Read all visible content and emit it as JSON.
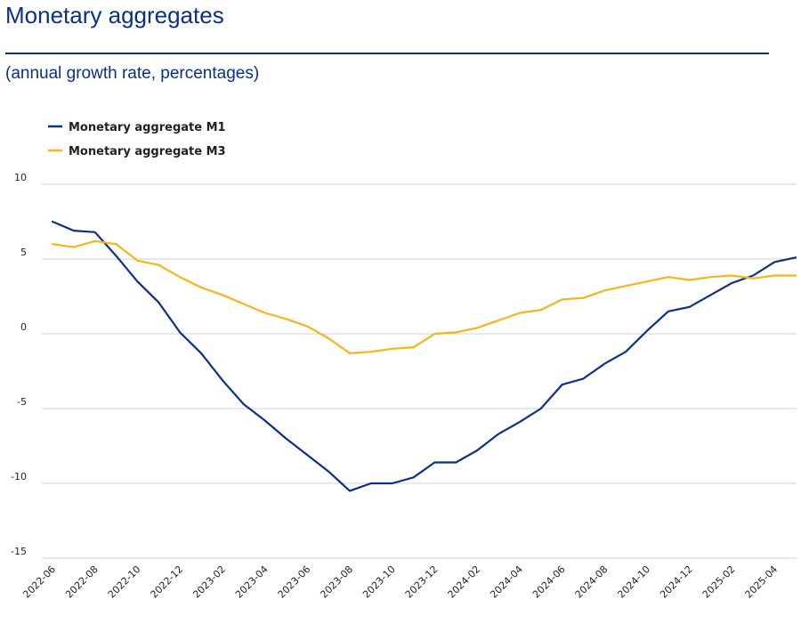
{
  "header": {
    "title": "Monetary aggregates",
    "subtitle": "(annual growth rate, percentages)"
  },
  "colors": {
    "m1": "#0b2f8a",
    "m3": "#f5b51b",
    "grid": "#d0d0d0",
    "title": "#0b2f8a"
  },
  "chart_data": {
    "type": "line",
    "title": "Monetary aggregates",
    "subtitle": "(annual growth rate, percentages)",
    "xlabel": "",
    "ylabel": "",
    "ylim": [
      -15,
      10
    ],
    "yticks": [
      10,
      5,
      0,
      -5,
      -10,
      -15
    ],
    "legend": "top-left",
    "grid": true,
    "x": [
      "2022-06",
      "2022-07",
      "2022-08",
      "2022-09",
      "2022-10",
      "2022-11",
      "2022-12",
      "2023-01",
      "2023-02",
      "2023-03",
      "2023-04",
      "2023-05",
      "2023-06",
      "2023-07",
      "2023-08",
      "2023-09",
      "2023-10",
      "2023-11",
      "2023-12",
      "2024-01",
      "2024-02",
      "2024-03",
      "2024-04",
      "2024-05",
      "2024-06",
      "2024-07",
      "2024-08",
      "2024-09",
      "2024-10",
      "2024-11",
      "2024-12",
      "2025-01",
      "2025-02",
      "2025-03",
      "2025-04",
      "2025-05"
    ],
    "xticks": [
      "2022-06",
      "2022-08",
      "2022-10",
      "2022-12",
      "2023-02",
      "2023-04",
      "2023-06",
      "2023-08",
      "2023-10",
      "2023-12",
      "2024-02",
      "2024-04",
      "2024-06",
      "2024-08",
      "2024-10",
      "2024-12",
      "2025-02",
      "2025-04"
    ],
    "series": [
      {
        "name": "Monetary aggregate M1",
        "color": "#0b2f8a",
        "values": [
          7.5,
          6.9,
          6.8,
          5.2,
          3.5,
          2.1,
          0.1,
          -1.3,
          -3.1,
          -4.7,
          -5.8,
          -7.0,
          -8.1,
          -9.2,
          -10.5,
          -10.0,
          -10.0,
          -9.6,
          -8.6,
          -8.6,
          -7.8,
          -6.7,
          -5.9,
          -5.0,
          -3.4,
          -3.0,
          -2.0,
          -1.2,
          0.2,
          1.5,
          1.8,
          2.6,
          3.4,
          3.9,
          4.8,
          5.1
        ]
      },
      {
        "name": "Monetary aggregate M3",
        "color": "#f5b51b",
        "values": [
          6.0,
          5.8,
          6.2,
          6.0,
          4.9,
          4.6,
          3.8,
          3.1,
          2.6,
          2.0,
          1.4,
          1.0,
          0.5,
          -0.3,
          -1.3,
          -1.2,
          -1.0,
          -0.9,
          0.0,
          0.1,
          0.4,
          0.9,
          1.4,
          1.6,
          2.3,
          2.4,
          2.9,
          3.2,
          3.5,
          3.8,
          3.6,
          3.8,
          3.9,
          3.7,
          3.9,
          3.9
        ]
      }
    ]
  }
}
